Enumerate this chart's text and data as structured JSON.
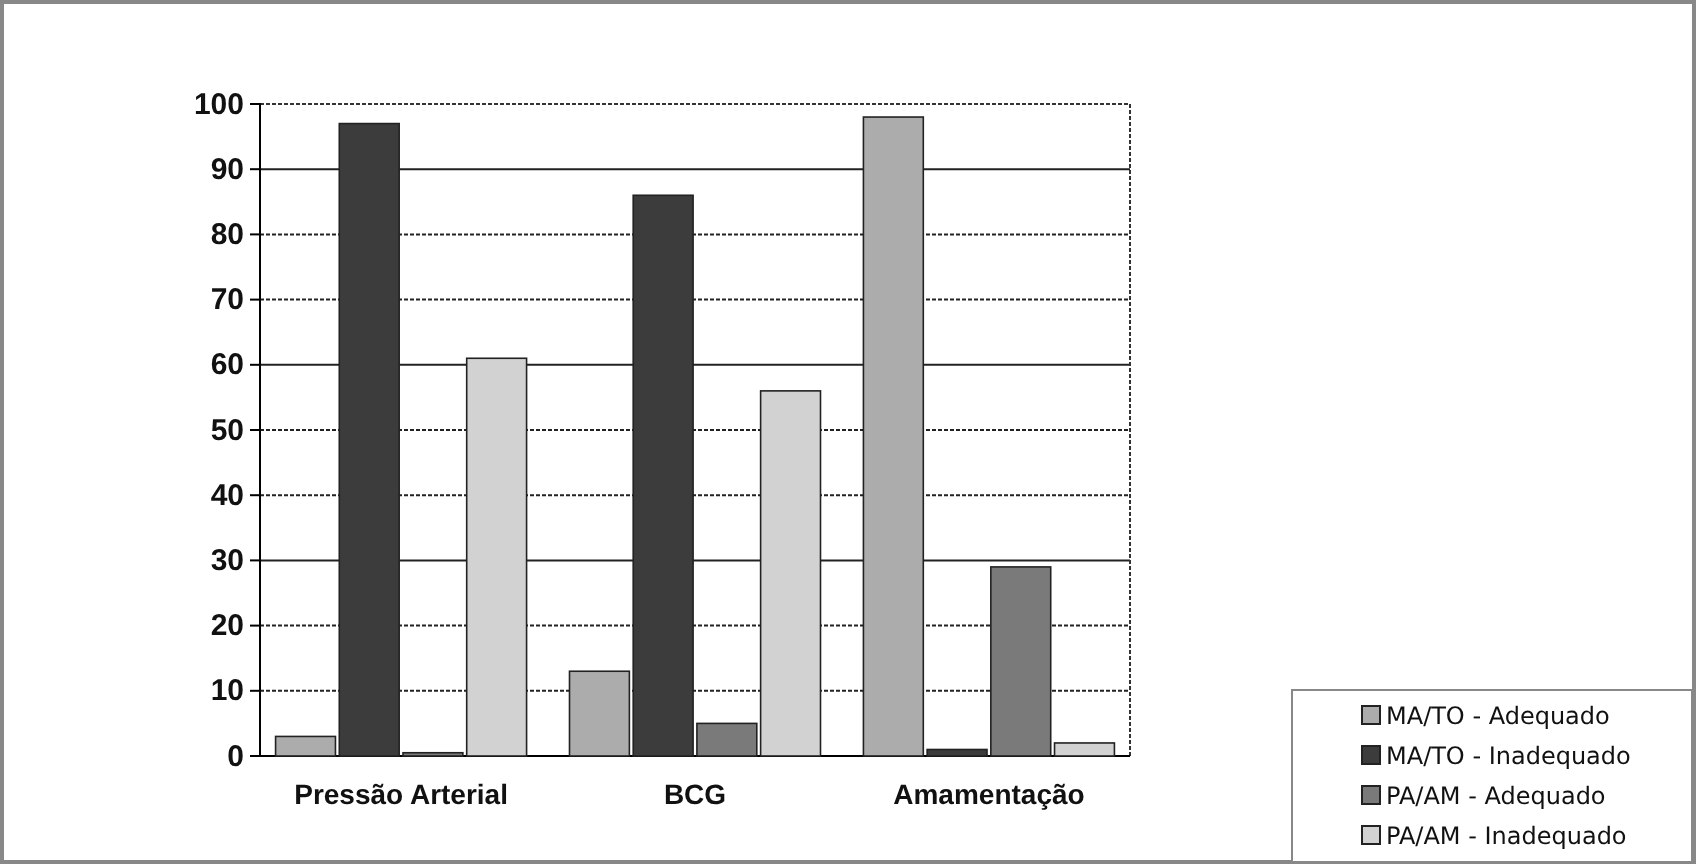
{
  "chart_data": {
    "type": "bar",
    "categories": [
      "Pressão Arterial",
      "BCG",
      "Amamentação"
    ],
    "series": [
      {
        "name": "MA/TO - Adequado",
        "color": "#acacac",
        "values": [
          3,
          13,
          98
        ]
      },
      {
        "name": "MA/TO - Inadequado",
        "color": "#3c3c3c",
        "values": [
          97,
          86,
          1
        ]
      },
      {
        "name": "PA/AM - Adequado",
        "color": "#7a7a7a",
        "values": [
          0.5,
          5,
          29
        ]
      },
      {
        "name": "PA/AM - Inadequado",
        "color": "#d2d2d2",
        "values": [
          61,
          56,
          2
        ]
      }
    ],
    "ylim": [
      0,
      100
    ],
    "yticks": [
      0,
      10,
      20,
      30,
      40,
      50,
      60,
      70,
      80,
      90,
      100
    ],
    "grid": "y",
    "legend": "bottom right"
  }
}
